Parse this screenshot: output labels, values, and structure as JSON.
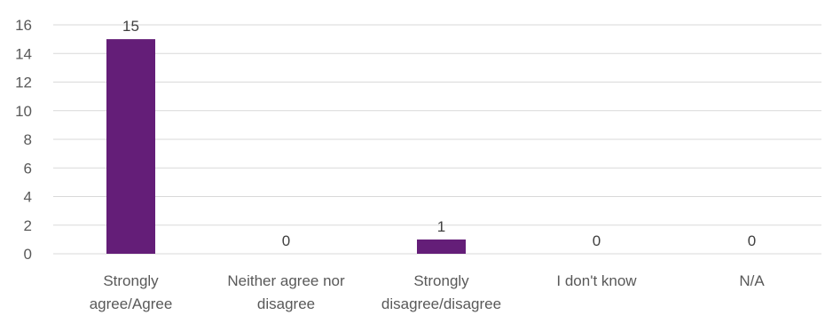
{
  "chart_data": {
    "type": "bar",
    "categories": [
      [
        "Strongly",
        "agree/Agree"
      ],
      [
        "Neither agree nor",
        "disagree"
      ],
      [
        "Strongly",
        "disagree/disagree"
      ],
      [
        "I don't know"
      ],
      [
        "N/A"
      ]
    ],
    "values": [
      15,
      0,
      1,
      0,
      0
    ],
    "ylim": [
      0,
      16
    ],
    "yticks": [
      0,
      2,
      4,
      6,
      8,
      10,
      12,
      14,
      16
    ],
    "bar_color": "#641e78",
    "grid": true,
    "legend": "none",
    "data_labels": true
  }
}
